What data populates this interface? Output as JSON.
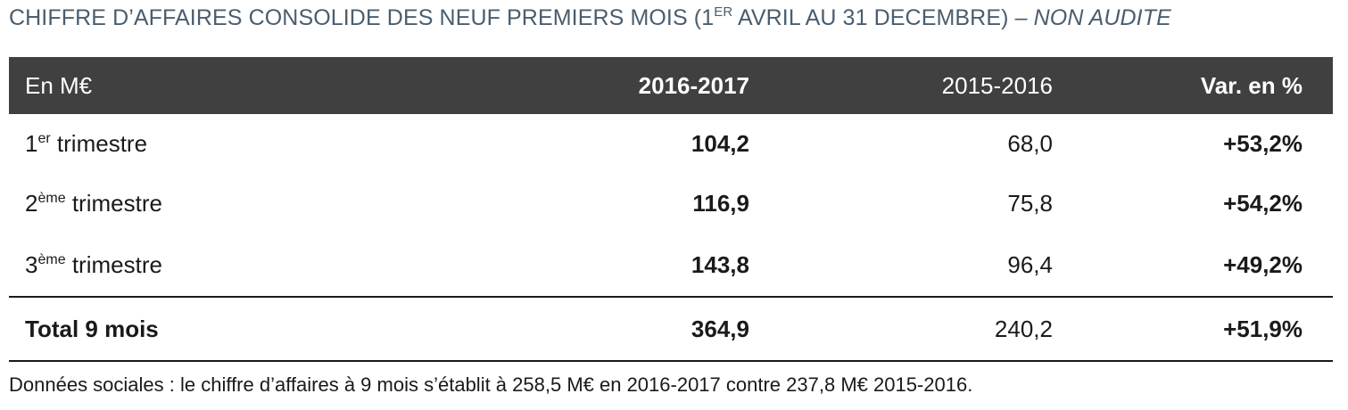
{
  "title": {
    "prefix": "CHIFFRE D’AFFAIRES CONSOLIDE DES NEUF PREMIERS MOIS (1",
    "sup": "ER",
    "suffix": " AVRIL AU 31 DECEMBRE) – ",
    "italic": "NON AUDITE"
  },
  "table": {
    "header": {
      "label": "En M€",
      "current": "2016-2017",
      "previous": "2015-2016",
      "variation": "Var. en %"
    },
    "rows": [
      {
        "num": "1",
        "sup": "er",
        "label": " trimestre",
        "current": "104,2",
        "previous": "68,0",
        "variation": "+53,2%"
      },
      {
        "num": "2",
        "sup": "ème",
        "label": " trimestre",
        "current": "116,9",
        "previous": "75,8",
        "variation": "+54,2%"
      },
      {
        "num": "3",
        "sup": "ème",
        "label": " trimestre",
        "current": "143,8",
        "previous": "96,4",
        "variation": "+49,2%"
      }
    ],
    "total": {
      "label": "Total 9 mois",
      "current": "364,9",
      "previous": "240,2",
      "variation": "+51,9%"
    }
  },
  "footnote": "Données sociales : le chiffre d’affaires à 9 mois s’établit à 258,5 M€ en 2016-2017 contre 237,8 M€ 2015-2016."
}
